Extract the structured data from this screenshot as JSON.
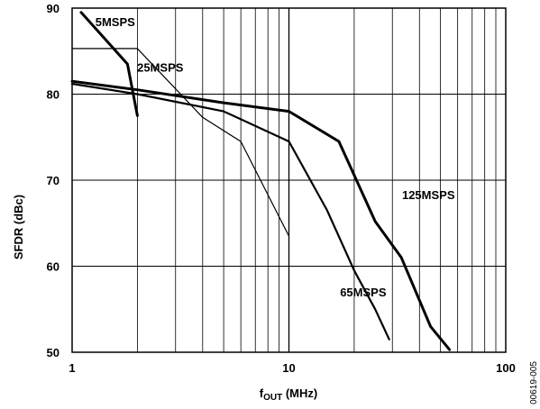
{
  "chart_data": {
    "type": "line",
    "xscale": "log",
    "xlim": [
      1,
      100
    ],
    "ylim": [
      50,
      90
    ],
    "grid": true,
    "xlabel": {
      "main": "f",
      "sub": "OUT",
      "rest": " (MHz)"
    },
    "ylabel": "SFDR (dBc)",
    "xticks": [
      1,
      10,
      100
    ],
    "xtick_labels": [
      "1",
      "10",
      "100"
    ],
    "yticks": [
      50,
      60,
      70,
      80,
      90
    ],
    "ytick_labels": [
      "50",
      "60",
      "70",
      "80",
      "90"
    ],
    "figure_id": "00619-005",
    "series": [
      {
        "name": "5MSPS",
        "label_at": [
          1.58,
          87.9
        ],
        "stroke": 3,
        "x": [
          1.1,
          1.8,
          2.0
        ],
        "y": [
          89.5,
          83.5,
          77.5
        ]
      },
      {
        "name": "25MSPS",
        "label_at": [
          2.55,
          82.6
        ],
        "stroke": 1.2,
        "x": [
          1.0,
          2.0,
          4.0,
          6.0,
          10.0
        ],
        "y": [
          85.3,
          85.3,
          77.3,
          74.5,
          63.5
        ]
      },
      {
        "name": "65MSPS",
        "label_at": [
          22.0,
          56.5
        ],
        "stroke": 2.2,
        "x": [
          1.0,
          2.0,
          5.0,
          10.0,
          15.0,
          20.0,
          25.0,
          29.0
        ],
        "y": [
          81.2,
          80.0,
          78.0,
          74.5,
          66.5,
          59.5,
          55.0,
          51.5
        ]
      },
      {
        "name": "125MSPS",
        "label_at": [
          44.0,
          67.8
        ],
        "stroke": 3,
        "x": [
          1.0,
          2.0,
          5.0,
          10.0,
          17.0,
          25.0,
          33.0,
          45.0,
          55.0
        ],
        "y": [
          81.5,
          80.5,
          79.0,
          78.0,
          74.5,
          65.2,
          61.0,
          53.0,
          50.3
        ]
      }
    ]
  }
}
